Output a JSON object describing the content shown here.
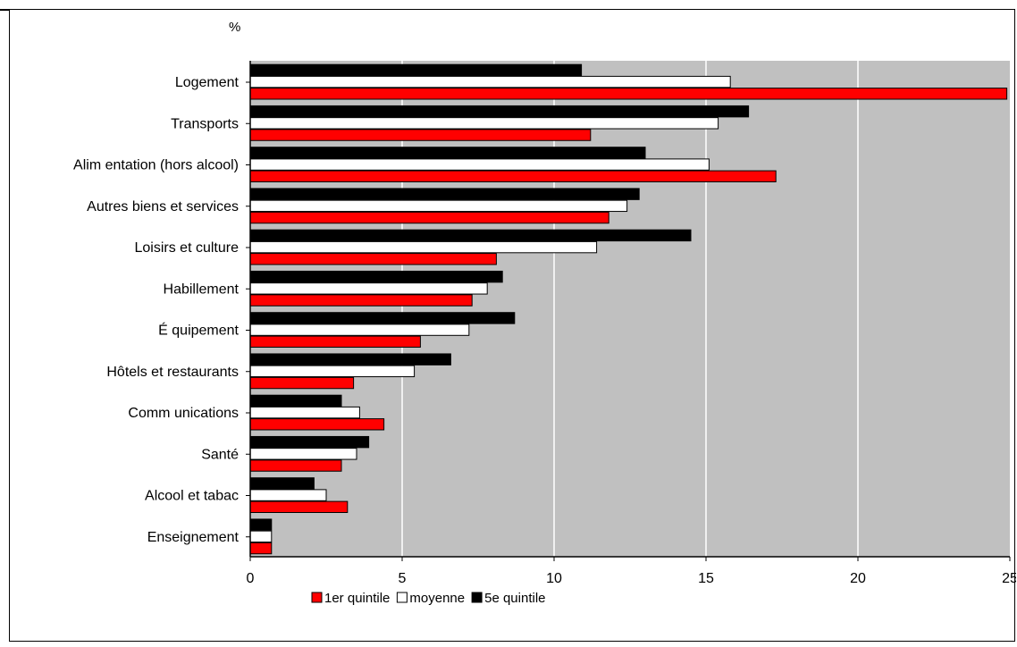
{
  "chart_data": {
    "type": "bar",
    "orientation": "horizontal",
    "unit_label": "%",
    "categories": [
      "Logement",
      "Transports",
      "Alim entation (hors alcool)",
      "Autres biens et services",
      "Loisirs et culture",
      "Habillement",
      "É quipement",
      "Hôtels et restaurants",
      "Comm unications",
      "Santé",
      "Alcool et tabac",
      "Enseignement"
    ],
    "series": [
      {
        "name": "5e quintile",
        "color": "#000000",
        "values": [
          10.9,
          16.4,
          13.0,
          12.8,
          14.5,
          8.3,
          8.7,
          6.6,
          3.0,
          3.9,
          2.1,
          0.7
        ]
      },
      {
        "name": "moyenne",
        "color": "#ffffff",
        "values": [
          15.8,
          15.4,
          15.1,
          12.4,
          11.4,
          7.8,
          7.2,
          5.4,
          3.6,
          3.5,
          2.5,
          0.7
        ]
      },
      {
        "name": "1er quintile",
        "color": "#ff0000",
        "values": [
          24.9,
          11.2,
          17.3,
          11.8,
          8.1,
          7.3,
          5.6,
          3.4,
          4.4,
          3.0,
          3.2,
          0.7
        ]
      }
    ],
    "xlim": [
      0,
      25
    ],
    "xticks": [
      "0",
      "5",
      "10",
      "15",
      "20",
      "25"
    ],
    "grid": true,
    "legend_order": [
      "1er quintile",
      "moyenne",
      "5e quintile"
    ],
    "legend_position": "bottom"
  }
}
